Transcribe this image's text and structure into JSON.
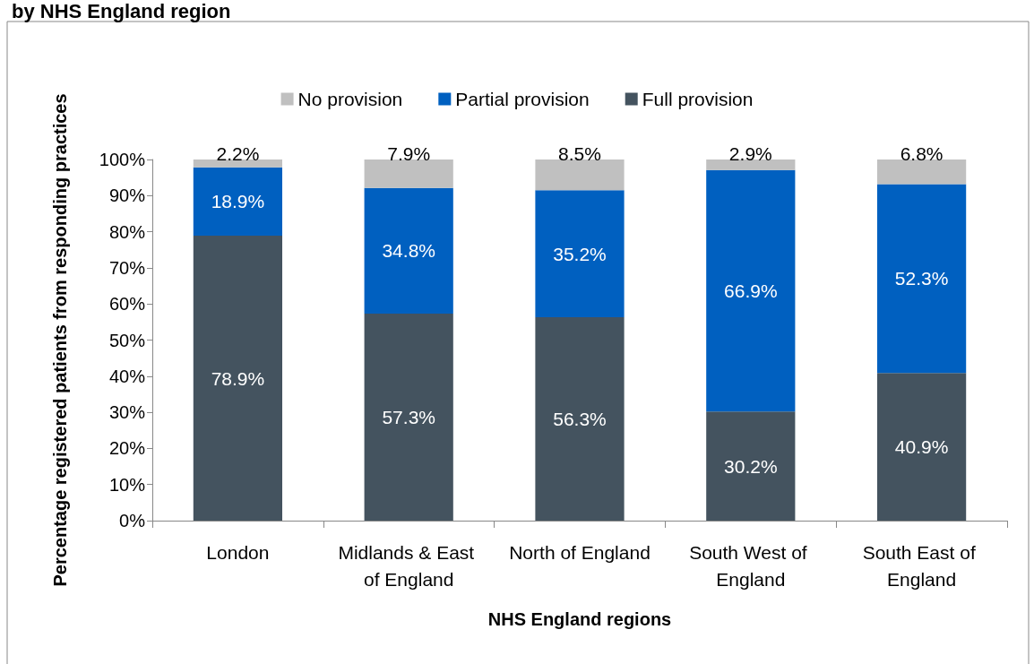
{
  "chart_data": {
    "type": "bar",
    "title": "by NHS England region",
    "xlabel": "NHS England regions",
    "ylabel": "Percentage registered patients from responding practices",
    "categories": [
      "London",
      "Midlands & East of England",
      "North of England",
      "South West of England",
      "South East of England"
    ],
    "stacked": true,
    "series": [
      {
        "name": "Full provision",
        "color": "#44535f",
        "values": [
          78.9,
          57.3,
          56.3,
          30.2,
          40.9
        ],
        "value_labels": [
          "78.9%",
          "57.3%",
          "56.3%",
          "30.2%",
          "40.9%"
        ]
      },
      {
        "name": "Partial provision",
        "color": "#0060c0",
        "values": [
          18.9,
          34.8,
          35.2,
          66.9,
          52.3
        ],
        "value_labels": [
          "18.9%",
          "34.8%",
          "35.2%",
          "66.9%",
          "52.3%"
        ]
      },
      {
        "name": "No provision",
        "color": "#c0c0c0",
        "values": [
          2.2,
          7.9,
          8.5,
          2.9,
          6.8
        ],
        "value_labels": [
          "2.2%",
          "7.9%",
          "8.5%",
          "2.9%",
          "6.8%"
        ]
      }
    ],
    "ylim": [
      0,
      100
    ],
    "yticks": [
      {
        "value": 0,
        "label": "0%"
      },
      {
        "value": 10,
        "label": "10%"
      },
      {
        "value": 20,
        "label": "20%"
      },
      {
        "value": 30,
        "label": "30%"
      },
      {
        "value": 40,
        "label": "40%"
      },
      {
        "value": 50,
        "label": "50%"
      },
      {
        "value": 60,
        "label": "60%"
      },
      {
        "value": 70,
        "label": "70%"
      },
      {
        "value": 80,
        "label": "80%"
      },
      {
        "value": 90,
        "label": "90%"
      },
      {
        "value": 100,
        "label": "100%"
      }
    ],
    "legend": "top",
    "grid": false
  }
}
